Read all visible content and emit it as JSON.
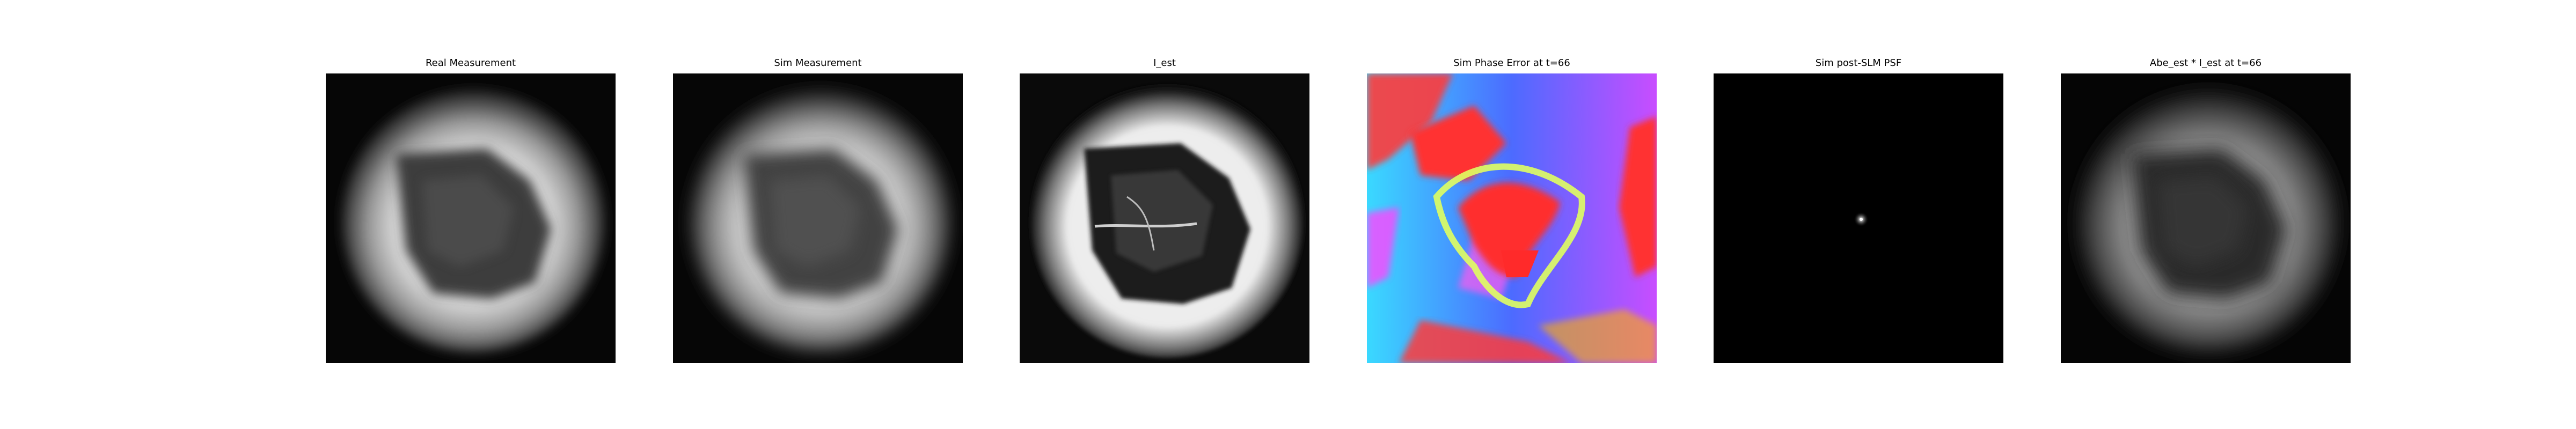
{
  "figure": {
    "panels": [
      {
        "title": "Real Measurement"
      },
      {
        "title": "Sim Measurement"
      },
      {
        "title": "I_est"
      },
      {
        "title": "Sim Phase Error at t=66"
      },
      {
        "title": "Sim post-SLM PSF"
      },
      {
        "title": "Abe_est * I_est at t=66"
      }
    ]
  }
}
